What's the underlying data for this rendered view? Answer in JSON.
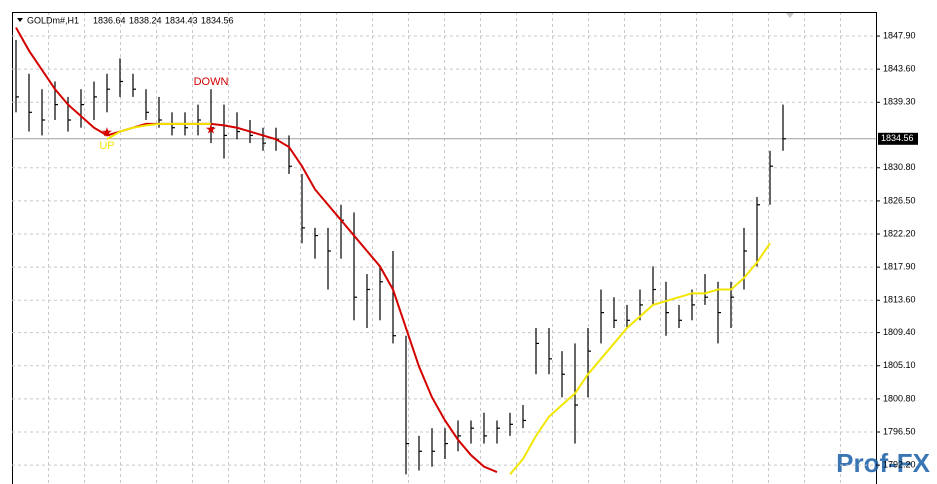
{
  "chart_data": {
    "type": "ohlc",
    "title": "GOLDm#,H1",
    "header_values": [
      1836.64,
      1838.24,
      1834.43,
      1834.56
    ],
    "watermark": "Prof-FX",
    "ylim": [
      1791.05,
      1851.02
    ],
    "yticks": [
      {
        "value": 1847.9,
        "label": "1847.90"
      },
      {
        "value": 1843.6,
        "label": "1843.60"
      },
      {
        "value": 1839.3,
        "label": "1839.30"
      },
      {
        "value": 1830.8,
        "label": "1830.80"
      },
      {
        "value": 1826.5,
        "label": "1826.50"
      },
      {
        "value": 1822.2,
        "label": "1822.20"
      },
      {
        "value": 1817.9,
        "label": "1817.90"
      },
      {
        "value": 1813.6,
        "label": "1813.60"
      },
      {
        "value": 1809.4,
        "label": "1809.40"
      },
      {
        "value": 1805.1,
        "label": "1805.10"
      },
      {
        "value": 1800.8,
        "label": "1800.80"
      },
      {
        "value": 1796.5,
        "label": "1796.50"
      },
      {
        "value": 1792.2,
        "label": "1792.20"
      }
    ],
    "grid": true,
    "bar_color": "#000000",
    "last_price": 1834.56,
    "high": [
      1847.4,
      1843,
      1841,
      1842,
      1840,
      1841,
      1842,
      1843,
      1845,
      1843,
      1841,
      1840,
      1838,
      1838,
      1839,
      1841,
      1839,
      1838,
      1837,
      1836,
      1836,
      1835,
      1830,
      1823,
      1823,
      1826,
      1825,
      1817,
      1818,
      1820,
      1809,
      1796,
      1797,
      1797,
      1798,
      1798,
      1799,
      1798,
      1799,
      1800,
      1810,
      1810,
      1807,
      1808,
      1810,
      1815,
      1814,
      1813,
      1815,
      1818,
      1816,
      1813,
      1815,
      1817,
      1816,
      1816,
      1823,
      1827,
      1833,
      1839
    ],
    "low": [
      1838,
      1835.5,
      1835,
      1837,
      1835.5,
      1836,
      1837,
      1838,
      1840,
      1840,
      1837,
      1836,
      1835,
      1835,
      1835,
      1834,
      1832,
      1834.5,
      1834,
      1833,
      1833,
      1830,
      1821,
      1819,
      1815,
      1819,
      1811,
      1810,
      1811,
      1808,
      1791,
      1791.5,
      1792,
      1793,
      1794,
      1795,
      1795,
      1795,
      1796,
      1797,
      1804,
      1804,
      1801,
      1795,
      1801,
      1808,
      1810,
      1810,
      1811,
      1813,
      1809,
      1810,
      1811,
      1813,
      1808,
      1810,
      1815,
      1818,
      1826,
      1833
    ],
    "close": [
      1840,
      1838,
      1837,
      1839,
      1837,
      1839,
      1840,
      1841,
      1842,
      1841,
      1838,
      1837,
      1836,
      1836,
      1837,
      1836,
      1835,
      1835.5,
      1835,
      1834,
      1834.5,
      1831,
      1823,
      1822,
      1820,
      1824,
      1814,
      1815,
      1816,
      1809,
      1795,
      1794,
      1794,
      1795,
      1796,
      1797,
      1796,
      1797,
      1797.5,
      1798,
      1808,
      1806,
      1804,
      1800,
      1807,
      1812,
      1811,
      1811,
      1813,
      1815,
      1812,
      1811,
      1813,
      1814,
      1812,
      1814,
      1820,
      1826,
      1831,
      1834.56
    ],
    "series": [
      {
        "name": "down",
        "color": "#d40000",
        "values": [
          1849,
          1846,
          1843.5,
          1841,
          1839,
          1837.5,
          1836,
          1835,
          1835.5,
          1836,
          1836.5,
          1836.5,
          1836.5,
          1836.5,
          1836.5,
          1836.5,
          1836.3,
          1836,
          1835.5,
          1835,
          1834.5,
          1833.5,
          1831,
          1828,
          1826,
          1824,
          1822,
          1820,
          1818,
          1815,
          1810,
          1805,
          1801,
          1798,
          1795.5,
          1793.5,
          1792,
          1791.3,
          null,
          null,
          null,
          null,
          null,
          null,
          null,
          null,
          null,
          null,
          null,
          null,
          null,
          null,
          null,
          null,
          null,
          null,
          null,
          null,
          null,
          null
        ]
      },
      {
        "name": "up",
        "color": "#f2e600",
        "values": [
          null,
          null,
          null,
          null,
          null,
          null,
          null,
          1834.5,
          1835.5,
          1836,
          1836.3,
          1836.5,
          1836.5,
          1836.5,
          1836.5,
          1836.5,
          null,
          null,
          null,
          null,
          null,
          null,
          null,
          null,
          null,
          null,
          null,
          null,
          null,
          null,
          null,
          null,
          null,
          null,
          null,
          null,
          null,
          null,
          1791,
          1793,
          1796,
          1798.5,
          1800,
          1801.5,
          1804,
          1806,
          1808,
          1810,
          1811.5,
          1813,
          1813.5,
          1814,
          1814.5,
          1814.5,
          1815,
          1815,
          1816.5,
          1818.5,
          1821,
          null
        ]
      }
    ],
    "annotations": [
      {
        "label": "UP",
        "index": 7,
        "value": 1835.3,
        "color": "#f2e600"
      },
      {
        "label": "DOWN",
        "index": 15,
        "value": 1835.7,
        "color": "#d40000"
      }
    ]
  }
}
